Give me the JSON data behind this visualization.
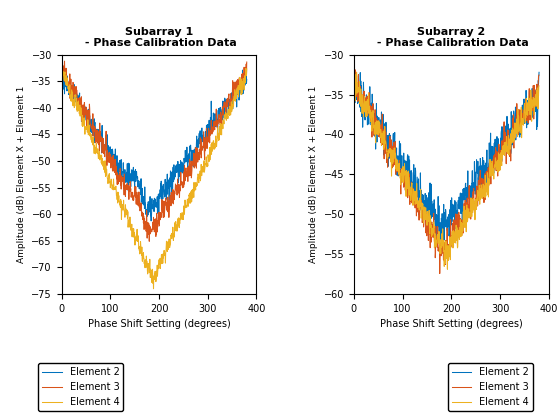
{
  "title1": "Subarray 1\n - Phase Calibration Data",
  "title2": "Subarray 2\n - Phase Calibration Data",
  "xlabel": "Phase Shift Setting (degrees)",
  "ylabel": "Amplitude (dB) Element X + Element 1",
  "xlim": [
    0,
    400
  ],
  "ylim1": [
    -75,
    -30
  ],
  "ylim2": [
    -60,
    -30
  ],
  "yticks1": [
    -75,
    -70,
    -65,
    -60,
    -55,
    -50,
    -45,
    -40,
    -35,
    -30
  ],
  "yticks2": [
    -60,
    -55,
    -50,
    -45,
    -40,
    -35,
    -30
  ],
  "xticks": [
    0,
    100,
    200,
    300,
    400
  ],
  "colors": {
    "Element 2": "#0072BD",
    "Element 3": "#D95319",
    "Element 4": "#EDB120"
  },
  "legend_labels": [
    "Element 2",
    "Element 3",
    "Element 4"
  ]
}
